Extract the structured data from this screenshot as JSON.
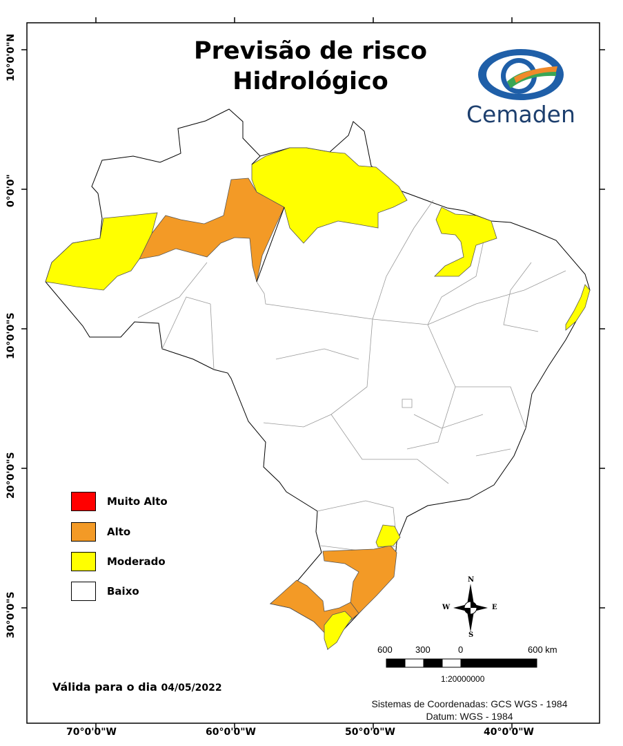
{
  "title": {
    "line1": "Previsão de risco",
    "line2": "Hidrológico"
  },
  "logo": {
    "text": "Cemaden",
    "icon": "cemaden-eye-icon",
    "colors": {
      "blue": "#1f5fa8",
      "green": "#3aa655",
      "orange": "#f08a2a"
    }
  },
  "lat_labels": [
    "10°0'0\"N",
    "0°0'0\"",
    "10°0'0\"S",
    "20°0'0\"S",
    "30°0'0\"S"
  ],
  "lon_labels": [
    "70°0'0\"W",
    "60°0'0\"W",
    "50°0'0\"W",
    "40°0'0\"W"
  ],
  "legend": [
    {
      "label": "Muito Alto",
      "color": "#ff0000"
    },
    {
      "label": "Alto",
      "color": "#f39a26"
    },
    {
      "label": "Moderado",
      "color": "#ffff00"
    },
    {
      "label": "Baixo",
      "color": "#ffffff"
    }
  ],
  "valid": {
    "prefix": "Válida para o dia",
    "date": "04/05/2022"
  },
  "scale": {
    "ticks": [
      "600",
      "300",
      "0",
      "600 km"
    ],
    "ratio": "1:20000000"
  },
  "compass": {
    "n": "N",
    "s": "S",
    "e": "E",
    "w": "W"
  },
  "coords": {
    "line1": "Sistemas de Coordenadas: GCS WGS - 1984",
    "line2": "Datum: WGS - 1984"
  }
}
